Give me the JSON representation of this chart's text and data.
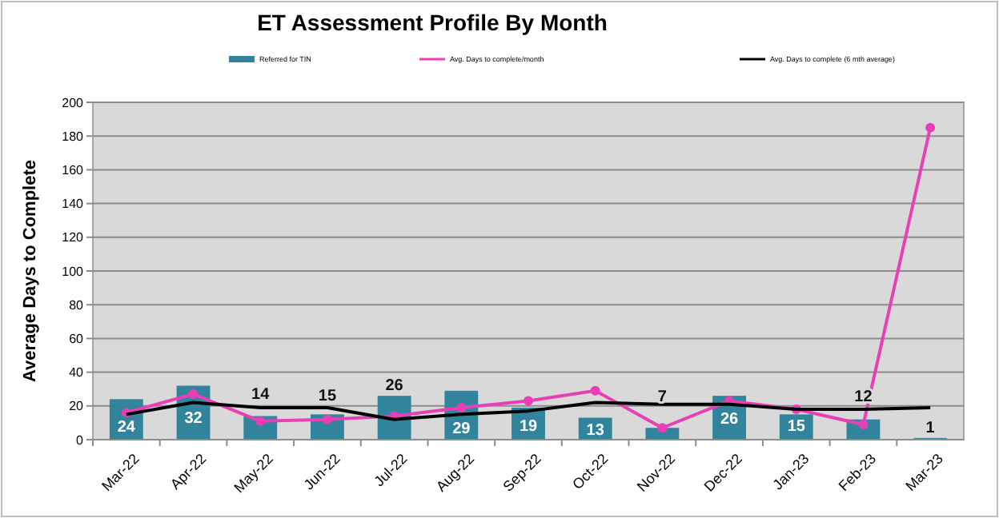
{
  "chart_data": {
    "type": "bar",
    "title": "ET Assessment Profile By Month",
    "ylabel": "Average Days to Complete",
    "categories": [
      "Mar-22",
      "Apr-22",
      "May-22",
      "Jun-22",
      "Jul-22",
      "Aug-22",
      "Sep-22",
      "Oct-22",
      "Nov-22",
      "Dec-22",
      "Jan-23",
      "Feb-23",
      "Mar-23"
    ],
    "series": [
      {
        "name": "Referred for TIN",
        "color": "#31849b",
        "values": [
          24,
          32,
          14,
          15,
          26,
          29,
          19,
          13,
          7,
          26,
          15,
          12,
          1
        ],
        "value_labels": [
          "24",
          "32",
          "14",
          "15",
          "26",
          "29",
          "19",
          "13",
          "7",
          "26",
          "15",
          "12",
          "1"
        ]
      },
      {
        "name": "Avg. Days to complete/month",
        "type": "line",
        "color": "#e83fb6",
        "marker": "circle",
        "values": [
          16,
          27,
          11,
          12,
          14,
          19,
          23,
          29,
          7,
          23,
          18,
          9,
          185
        ]
      },
      {
        "name": "Avg. Days to complete (6 mth average)",
        "type": "line",
        "color": "#000000",
        "marker": "none",
        "values": [
          15,
          22,
          19,
          19,
          12,
          15,
          17,
          22,
          21,
          21,
          18,
          18,
          19
        ]
      }
    ],
    "ylim": [
      0,
      200
    ],
    "yticks": [
      0,
      20,
      40,
      60,
      80,
      100,
      120,
      140,
      160,
      180,
      200
    ],
    "grid": "y",
    "legend": "top"
  }
}
